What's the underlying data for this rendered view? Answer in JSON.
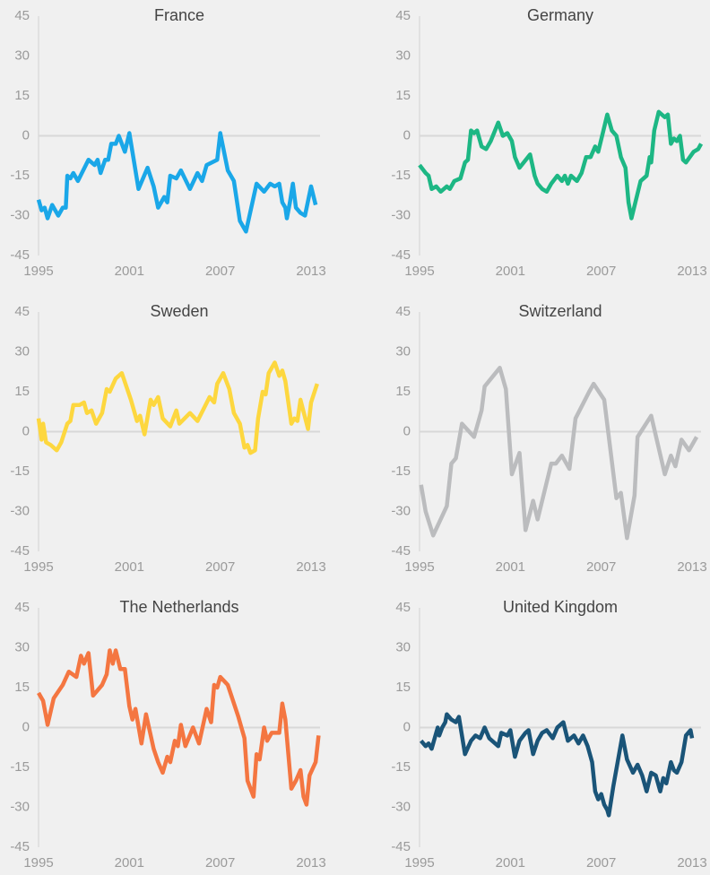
{
  "chart_data": [
    {
      "type": "line",
      "title": "France",
      "color": "#1aa7e8",
      "xlim": [
        1995,
        2013
      ],
      "xticks": [
        1995,
        2001,
        2007,
        2013
      ],
      "ylim": [
        -45,
        45
      ],
      "yticks": [
        -45,
        -30,
        -15,
        0,
        15,
        30,
        45
      ],
      "x": [
        1995,
        1995.2,
        1995.4,
        1995.6,
        1995.9,
        1996.3,
        1996.6,
        1996.8,
        1996.9,
        1997.1,
        1997.3,
        1997.6,
        1998.3,
        1998.7,
        1998.9,
        1999.1,
        1999.4,
        1999.6,
        1999.8,
        2000.1,
        2000.3,
        2000.5,
        2000.7,
        2001.0,
        2001.6,
        2002.2,
        2002.6,
        2002.9,
        2003.3,
        2003.5,
        2003.7,
        2004.1,
        2004.4,
        2005.0,
        2005.5,
        2005.8,
        2006.1,
        2006.8,
        2007.0,
        2007.5,
        2007.9,
        2008.3,
        2008.7,
        2009.4,
        2009.9,
        2010.3,
        2010.6,
        2010.9,
        2011.1,
        2011.3,
        2011.4,
        2011.6,
        2011.8,
        2012.0,
        2012.3,
        2012.6,
        2013.0,
        2013.3
      ],
      "values": [
        -24,
        -28,
        -27,
        -31,
        -26,
        -30,
        -27,
        -27,
        -15,
        -16,
        -14,
        -17,
        -9,
        -11,
        -9,
        -14,
        -9,
        -9,
        -3,
        -3,
        0,
        -3,
        -6,
        1,
        -20,
        -12,
        -19,
        -27,
        -23,
        -25,
        -15,
        -16,
        -13,
        -20,
        -14,
        -17,
        -11,
        -9,
        1,
        -13,
        -17,
        -32,
        -36,
        -18,
        -21,
        -18,
        -19,
        -18,
        -25,
        -27,
        -31,
        -25,
        -18,
        -27,
        -29,
        -30,
        -19,
        -26
      ]
    },
    {
      "type": "line",
      "title": "Germany",
      "color": "#1db784",
      "xlim": [
        1995,
        2013
      ],
      "xticks": [
        1995,
        2001,
        2007,
        2013
      ],
      "ylim": [
        -45,
        45
      ],
      "yticks": [
        -45,
        -30,
        -15,
        0,
        15,
        30,
        45
      ],
      "x": [
        1995,
        1995.4,
        1995.6,
        1995.8,
        1996.1,
        1996.4,
        1996.8,
        1997.0,
        1997.3,
        1997.7,
        1998.0,
        1998.2,
        1998.4,
        1998.6,
        1998.8,
        1999.1,
        1999.4,
        1999.7,
        2000.2,
        2000.5,
        2000.8,
        2001.1,
        2001.3,
        2001.6,
        2002.3,
        2002.6,
        2002.8,
        2003.1,
        2003.4,
        2003.7,
        2004.1,
        2004.4,
        2004.6,
        2004.8,
        2005.0,
        2005.4,
        2005.7,
        2006.0,
        2006.3,
        2006.6,
        2006.8,
        2007.1,
        2007.4,
        2007.7,
        2008.0,
        2008.3,
        2008.6,
        2008.8,
        2009.0,
        2009.6,
        2010.0,
        2010.2,
        2010.3,
        2010.5,
        2010.8,
        2011.2,
        2011.4,
        2011.6,
        2011.8,
        2012.0,
        2012.2,
        2012.4,
        2012.6,
        2013.1,
        2013.4,
        2013.6
      ],
      "values": [
        -11,
        -14,
        -15,
        -20,
        -19,
        -21,
        -19,
        -20,
        -17,
        -16,
        -10,
        -9,
        2,
        1,
        2,
        -4,
        -5,
        -2,
        5,
        0,
        1,
        -2,
        -8,
        -12,
        -7,
        -15,
        -18,
        -20,
        -21,
        -18,
        -15,
        -17,
        -15,
        -18,
        -15,
        -17,
        -14,
        -8,
        -8,
        -4,
        -6,
        1,
        8,
        2,
        0,
        -8,
        -12,
        -25,
        -31,
        -17,
        -15,
        -8,
        -10,
        2,
        9,
        7,
        8,
        -3,
        -1,
        -2,
        0,
        -9,
        -10,
        -6,
        -5,
        -3
      ]
    },
    {
      "type": "line",
      "title": "Sweden",
      "color": "#fdd73f",
      "xlim": [
        1995,
        2013
      ],
      "xticks": [
        1995,
        2001,
        2007,
        2013
      ],
      "ylim": [
        -45,
        45
      ],
      "yticks": [
        -45,
        -30,
        -15,
        0,
        15,
        30,
        45
      ],
      "x": [
        1995,
        1995.2,
        1995.3,
        1995.5,
        1995.8,
        1996.2,
        1996.5,
        1996.9,
        1997.1,
        1997.3,
        1997.7,
        1998.0,
        1998.2,
        1998.5,
        1998.8,
        1999.2,
        1999.5,
        1999.7,
        2000.1,
        2000.5,
        2001.1,
        2001.5,
        2001.7,
        2002.0,
        2002.4,
        2002.6,
        2002.9,
        2003.2,
        2003.7,
        2004.1,
        2004.3,
        2005.0,
        2005.5,
        2006.3,
        2006.6,
        2006.8,
        2007.2,
        2007.6,
        2007.9,
        2008.3,
        2008.6,
        2008.8,
        2009.0,
        2009.3,
        2009.5,
        2009.8,
        2010.0,
        2010.2,
        2010.6,
        2010.9,
        2011.1,
        2011.3,
        2011.7,
        2011.9,
        2012.1,
        2012.3,
        2012.8,
        2013.0,
        2013.4
      ],
      "values": [
        5,
        -3,
        3,
        -4,
        -5,
        -7,
        -4,
        3,
        4,
        10,
        10,
        11,
        7,
        8,
        3,
        7,
        16,
        15,
        20,
        22,
        12,
        4,
        6,
        -1,
        12,
        10,
        13,
        5,
        2,
        8,
        3,
        7,
        4,
        13,
        11,
        18,
        22,
        16,
        7,
        3,
        -6,
        -5,
        -8,
        -7,
        5,
        15,
        14,
        22,
        26,
        21,
        23,
        19,
        3,
        5,
        4,
        12,
        1,
        11,
        18
      ]
    },
    {
      "type": "line",
      "title": "Switzerland",
      "color": "#bbbcbe",
      "xlim": [
        1995,
        2013
      ],
      "xticks": [
        1995,
        2001,
        2007,
        2013
      ],
      "ylim": [
        -45,
        45
      ],
      "yticks": [
        -45,
        -30,
        -15,
        0,
        15,
        30,
        45
      ],
      "x": [
        1995.1,
        1995.4,
        1995.9,
        1996.8,
        1997.1,
        1997.4,
        1997.8,
        1998.6,
        1999.1,
        1999.3,
        2000.3,
        2000.7,
        2001.1,
        2001.6,
        2002.0,
        2002.5,
        2002.8,
        2003.7,
        2004.0,
        2004.4,
        2004.9,
        2005.3,
        2006.2,
        2006.5,
        2007.2,
        2008.0,
        2008.3,
        2008.7,
        2009.2,
        2009.4,
        2010.3,
        2011.2,
        2011.6,
        2011.9,
        2012.3,
        2012.8,
        2013.3
      ],
      "values": [
        -20,
        -30,
        -39,
        -28,
        -12,
        -10,
        3,
        -2,
        8,
        17,
        24,
        16,
        -16,
        -8,
        -37,
        -26,
        -33,
        -12,
        -12,
        -9,
        -14,
        5,
        15,
        18,
        12,
        -25,
        -23,
        -40,
        -24,
        -2,
        6,
        -16,
        -9,
        -13,
        -3,
        -7,
        -2
      ]
    },
    {
      "type": "line",
      "title": "The Netherlands",
      "color": "#f47641",
      "xlim": [
        1995,
        2013
      ],
      "xticks": [
        1995,
        2001,
        2007,
        2013
      ],
      "ylim": [
        -45,
        45
      ],
      "yticks": [
        -45,
        -30,
        -15,
        0,
        15,
        30,
        45
      ],
      "x": [
        1995,
        1995.3,
        1995.6,
        1996.0,
        1996.6,
        1997.0,
        1997.5,
        1997.8,
        1998.0,
        1998.3,
        1998.6,
        1999.2,
        1999.5,
        1999.7,
        1999.9,
        2000.1,
        2000.4,
        2000.7,
        2001.0,
        2001.2,
        2001.4,
        2001.8,
        2002.1,
        2002.6,
        2002.9,
        2003.2,
        2003.5,
        2003.7,
        2004.0,
        2004.2,
        2004.4,
        2004.7,
        2005.2,
        2005.6,
        2006.1,
        2006.4,
        2006.6,
        2006.8,
        2007.0,
        2007.5,
        2008.2,
        2008.6,
        2008.8,
        2009.2,
        2009.4,
        2009.6,
        2009.9,
        2010.1,
        2010.4,
        2010.9,
        2011.1,
        2011.3,
        2011.7,
        2012.0,
        2012.3,
        2012.5,
        2012.7,
        2012.9,
        2013.3,
        2013.5
      ],
      "values": [
        13,
        10,
        1,
        11,
        16,
        21,
        19,
        27,
        24,
        28,
        12,
        16,
        20,
        29,
        24,
        29,
        22,
        22,
        8,
        3,
        7,
        -6,
        5,
        -8,
        -13,
        -17,
        -11,
        -13,
        -5,
        -7,
        1,
        -7,
        0,
        -6,
        7,
        2,
        16,
        15,
        19,
        16,
        4,
        -4,
        -20,
        -26,
        -10,
        -12,
        0,
        -5,
        -2,
        -2,
        9,
        3,
        -23,
        -20,
        -16,
        -26,
        -29,
        -18,
        -13,
        -3
      ]
    },
    {
      "type": "line",
      "title": "United Kingdom",
      "color": "#1a5478",
      "xlim": [
        1995,
        2013
      ],
      "xticks": [
        1995,
        2001,
        2007,
        2013
      ],
      "ylim": [
        -45,
        45
      ],
      "yticks": [
        -45,
        -30,
        -15,
        0,
        15,
        30,
        45
      ],
      "x": [
        1995.1,
        1995.4,
        1995.6,
        1995.8,
        1996.1,
        1996.2,
        1996.3,
        1996.5,
        1996.7,
        1996.8,
        1997.1,
        1997.4,
        1997.6,
        1998.0,
        1998.4,
        1998.7,
        1999.0,
        1999.3,
        1999.6,
        2000.0,
        2000.2,
        2000.4,
        2000.8,
        2001.0,
        2001.3,
        2001.6,
        2002.0,
        2002.2,
        2002.5,
        2002.8,
        2003.1,
        2003.4,
        2003.8,
        2004.1,
        2004.5,
        2004.8,
        2005.2,
        2005.5,
        2005.8,
        2006.1,
        2006.4,
        2006.6,
        2006.8,
        2007.0,
        2007.2,
        2007.4,
        2007.5,
        2007.8,
        2008.4,
        2008.7,
        2009.1,
        2009.4,
        2009.7,
        2010.0,
        2010.3,
        2010.6,
        2010.9,
        2011.1,
        2011.3,
        2011.6,
        2011.8,
        2012.0,
        2012.3,
        2012.6,
        2012.9,
        2013.0
      ],
      "values": [
        -5,
        -7,
        -6,
        -8,
        -2,
        0,
        -3,
        0,
        2,
        5,
        3,
        2,
        4,
        -10,
        -5,
        -3,
        -4,
        0,
        -4,
        -6,
        -7,
        -2,
        -3,
        -1,
        -11,
        -5,
        -2,
        -1,
        -10,
        -5,
        -2,
        -1,
        -4,
        0,
        2,
        -5,
        -3,
        -6,
        -3,
        -7,
        -13,
        -24,
        -27,
        -25,
        -29,
        -31,
        -33,
        -22,
        -3,
        -12,
        -17,
        -14,
        -18,
        -24,
        -17,
        -18,
        -24,
        -19,
        -21,
        -13,
        -16,
        -17,
        -13,
        -3,
        -1,
        -4
      ]
    }
  ]
}
